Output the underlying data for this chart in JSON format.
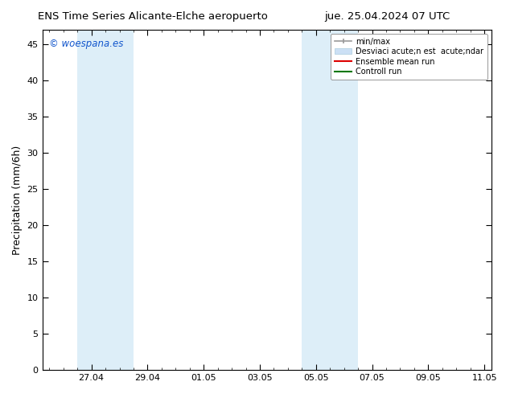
{
  "title_left": "ENS Time Series Alicante-Elche aeropuerto",
  "title_right": "jue. 25.04.2024 07 UTC",
  "ylabel": "Precipitation (mm/6h)",
  "ylim": [
    0,
    47
  ],
  "yticks": [
    0,
    5,
    10,
    15,
    20,
    25,
    30,
    35,
    40,
    45
  ],
  "xtick_labels": [
    "27.04",
    "29.04",
    "01.05",
    "03.05",
    "05.05",
    "07.05",
    "09.05",
    "11.05"
  ],
  "xtick_positions": [
    2,
    4,
    6,
    8,
    10,
    12,
    14,
    16
  ],
  "xlim": [
    0.25,
    16.25
  ],
  "background_color": "#ffffff",
  "plot_bg_color": "#ffffff",
  "watermark": "© woespana.es",
  "watermark_color": "#1155cc",
  "legend_entries": [
    {
      "label": "min/max",
      "color": "#aaaaaa"
    },
    {
      "label": "Desviaci acute;n est  acute;ndar",
      "color": "#cce0f5"
    },
    {
      "label": "Ensemble mean run",
      "color": "#dd0000"
    },
    {
      "label": "Controll run",
      "color": "#007700"
    }
  ],
  "shaded_regions": [
    {
      "xstart": 1.5,
      "xend": 3.5,
      "color": "#ddeef8"
    },
    {
      "xstart": 9.5,
      "xend": 11.5,
      "color": "#ddeef8"
    }
  ],
  "minor_tick_interval": 0.5
}
